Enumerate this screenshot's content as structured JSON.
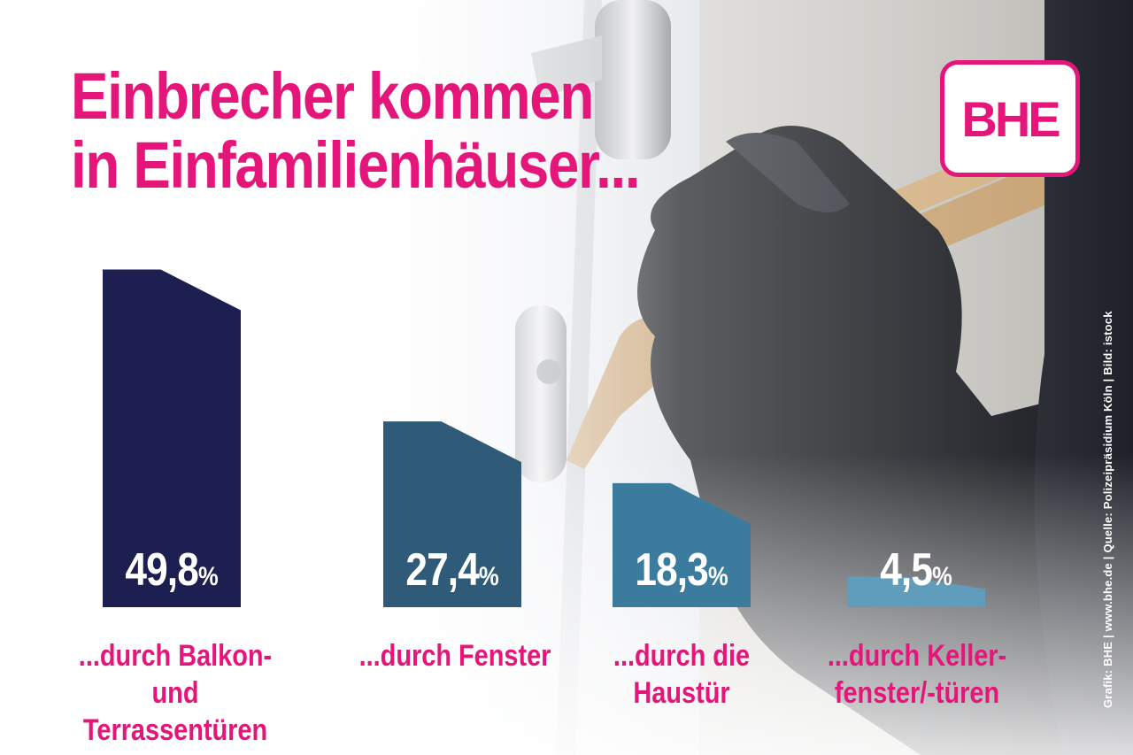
{
  "title_lines": [
    "Einbrecher kommen",
    "in Einfamilienhäuser..."
  ],
  "logo_text": "BHE",
  "credit": "Grafik: BHE  |  www.bhe.de  |  Quelle: Polizeipräsidium Köln  |  Bild: istock",
  "colors": {
    "accent": "#e5167a",
    "bars": [
      "#1c1f4f",
      "#2f5b78",
      "#3b7c9e",
      "#5f9dba"
    ]
  },
  "chart_data": {
    "type": "bar",
    "title": "Einbrecher kommen in Einfamilienhäuser...",
    "categories": [
      "...durch Balkon- und\nTerrassentüren",
      "...durch Fenster",
      "...durch die\nHaustür",
      "...durch Keller-\nfenster/-türen"
    ],
    "values": [
      49.8,
      27.4,
      18.3,
      4.5
    ],
    "value_labels": [
      "49,8",
      "27,4",
      "18,3",
      "4,5"
    ],
    "unit": "%",
    "ylim": [
      0,
      50
    ]
  }
}
